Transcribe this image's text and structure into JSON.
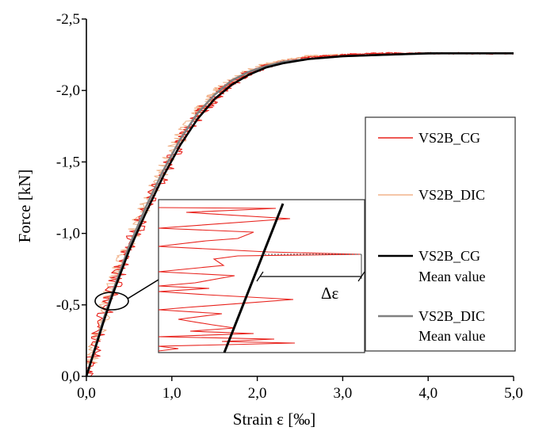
{
  "chart_data": {
    "type": "line",
    "xlabel": "Strain ε [‰]",
    "ylabel": "Force [kN]",
    "xlim": [
      0,
      5
    ],
    "ylim": [
      0,
      -2.5
    ],
    "x_ticks": [
      "0,0",
      "1,0",
      "2,0",
      "3,0",
      "4,0",
      "5,0"
    ],
    "y_ticks": [
      "0,0",
      "-0,5",
      "-1,0",
      "-1,5",
      "-2,0",
      "-2,5"
    ],
    "grid": false,
    "legend_position": "right",
    "series": [
      {
        "name": "VS2B_CG",
        "color": "#e8211b",
        "noisy": true,
        "x": [
          0,
          0.15,
          0.3,
          0.5,
          0.7,
          0.9,
          1.1,
          1.3,
          1.5,
          1.7,
          1.9,
          2.1,
          2.3,
          2.6,
          3.0,
          3.5,
          4.0,
          5.0
        ],
        "y": [
          0,
          -0.3,
          -0.6,
          -0.9,
          -1.17,
          -1.42,
          -1.64,
          -1.82,
          -1.95,
          -2.05,
          -2.12,
          -2.17,
          -2.2,
          -2.23,
          -2.25,
          -2.26,
          -2.26,
          -2.26
        ]
      },
      {
        "name": "VS2B_DIC",
        "color": "#f2b38a",
        "noisy": true,
        "x": [
          0,
          0.15,
          0.3,
          0.5,
          0.7,
          0.9,
          1.1,
          1.3,
          1.5,
          1.7,
          1.9,
          2.1,
          2.3,
          2.6,
          3.0,
          3.5,
          4.0
        ],
        "y": [
          0,
          -0.32,
          -0.62,
          -0.93,
          -1.2,
          -1.45,
          -1.67,
          -1.84,
          -1.97,
          -2.07,
          -2.13,
          -2.18,
          -2.21,
          -2.24,
          -2.25,
          -2.25,
          -2.26
        ]
      },
      {
        "name": "VS2B_CG",
        "subname": "Mean value",
        "color": "#000000",
        "noisy": false,
        "x": [
          0,
          0.1,
          0.2,
          0.3,
          0.5,
          0.7,
          0.9,
          1.1,
          1.3,
          1.5,
          1.7,
          1.9,
          2.1,
          2.3,
          2.6,
          3.0,
          3.5,
          4.0,
          5.0
        ],
        "y": [
          0,
          -0.19,
          -0.38,
          -0.56,
          -0.88,
          -1.15,
          -1.4,
          -1.62,
          -1.8,
          -1.94,
          -2.04,
          -2.11,
          -2.16,
          -2.19,
          -2.22,
          -2.24,
          -2.25,
          -2.26,
          -2.26
        ]
      },
      {
        "name": "VS2B_DIC",
        "subname": "Mean value",
        "color": "#808080",
        "noisy": false,
        "x": [
          0,
          0.1,
          0.2,
          0.3,
          0.5,
          0.7,
          0.9,
          1.1,
          1.3,
          1.5,
          1.7,
          1.9,
          2.1,
          2.3,
          2.6,
          3.0,
          3.5,
          4.1
        ],
        "y": [
          0,
          -0.2,
          -0.4,
          -0.58,
          -0.91,
          -1.19,
          -1.44,
          -1.66,
          -1.84,
          -1.97,
          -2.07,
          -2.13,
          -2.17,
          -2.2,
          -2.22,
          -2.24,
          -2.25,
          -2.26
        ]
      }
    ],
    "inset": {
      "annotation": "Δε"
    }
  }
}
